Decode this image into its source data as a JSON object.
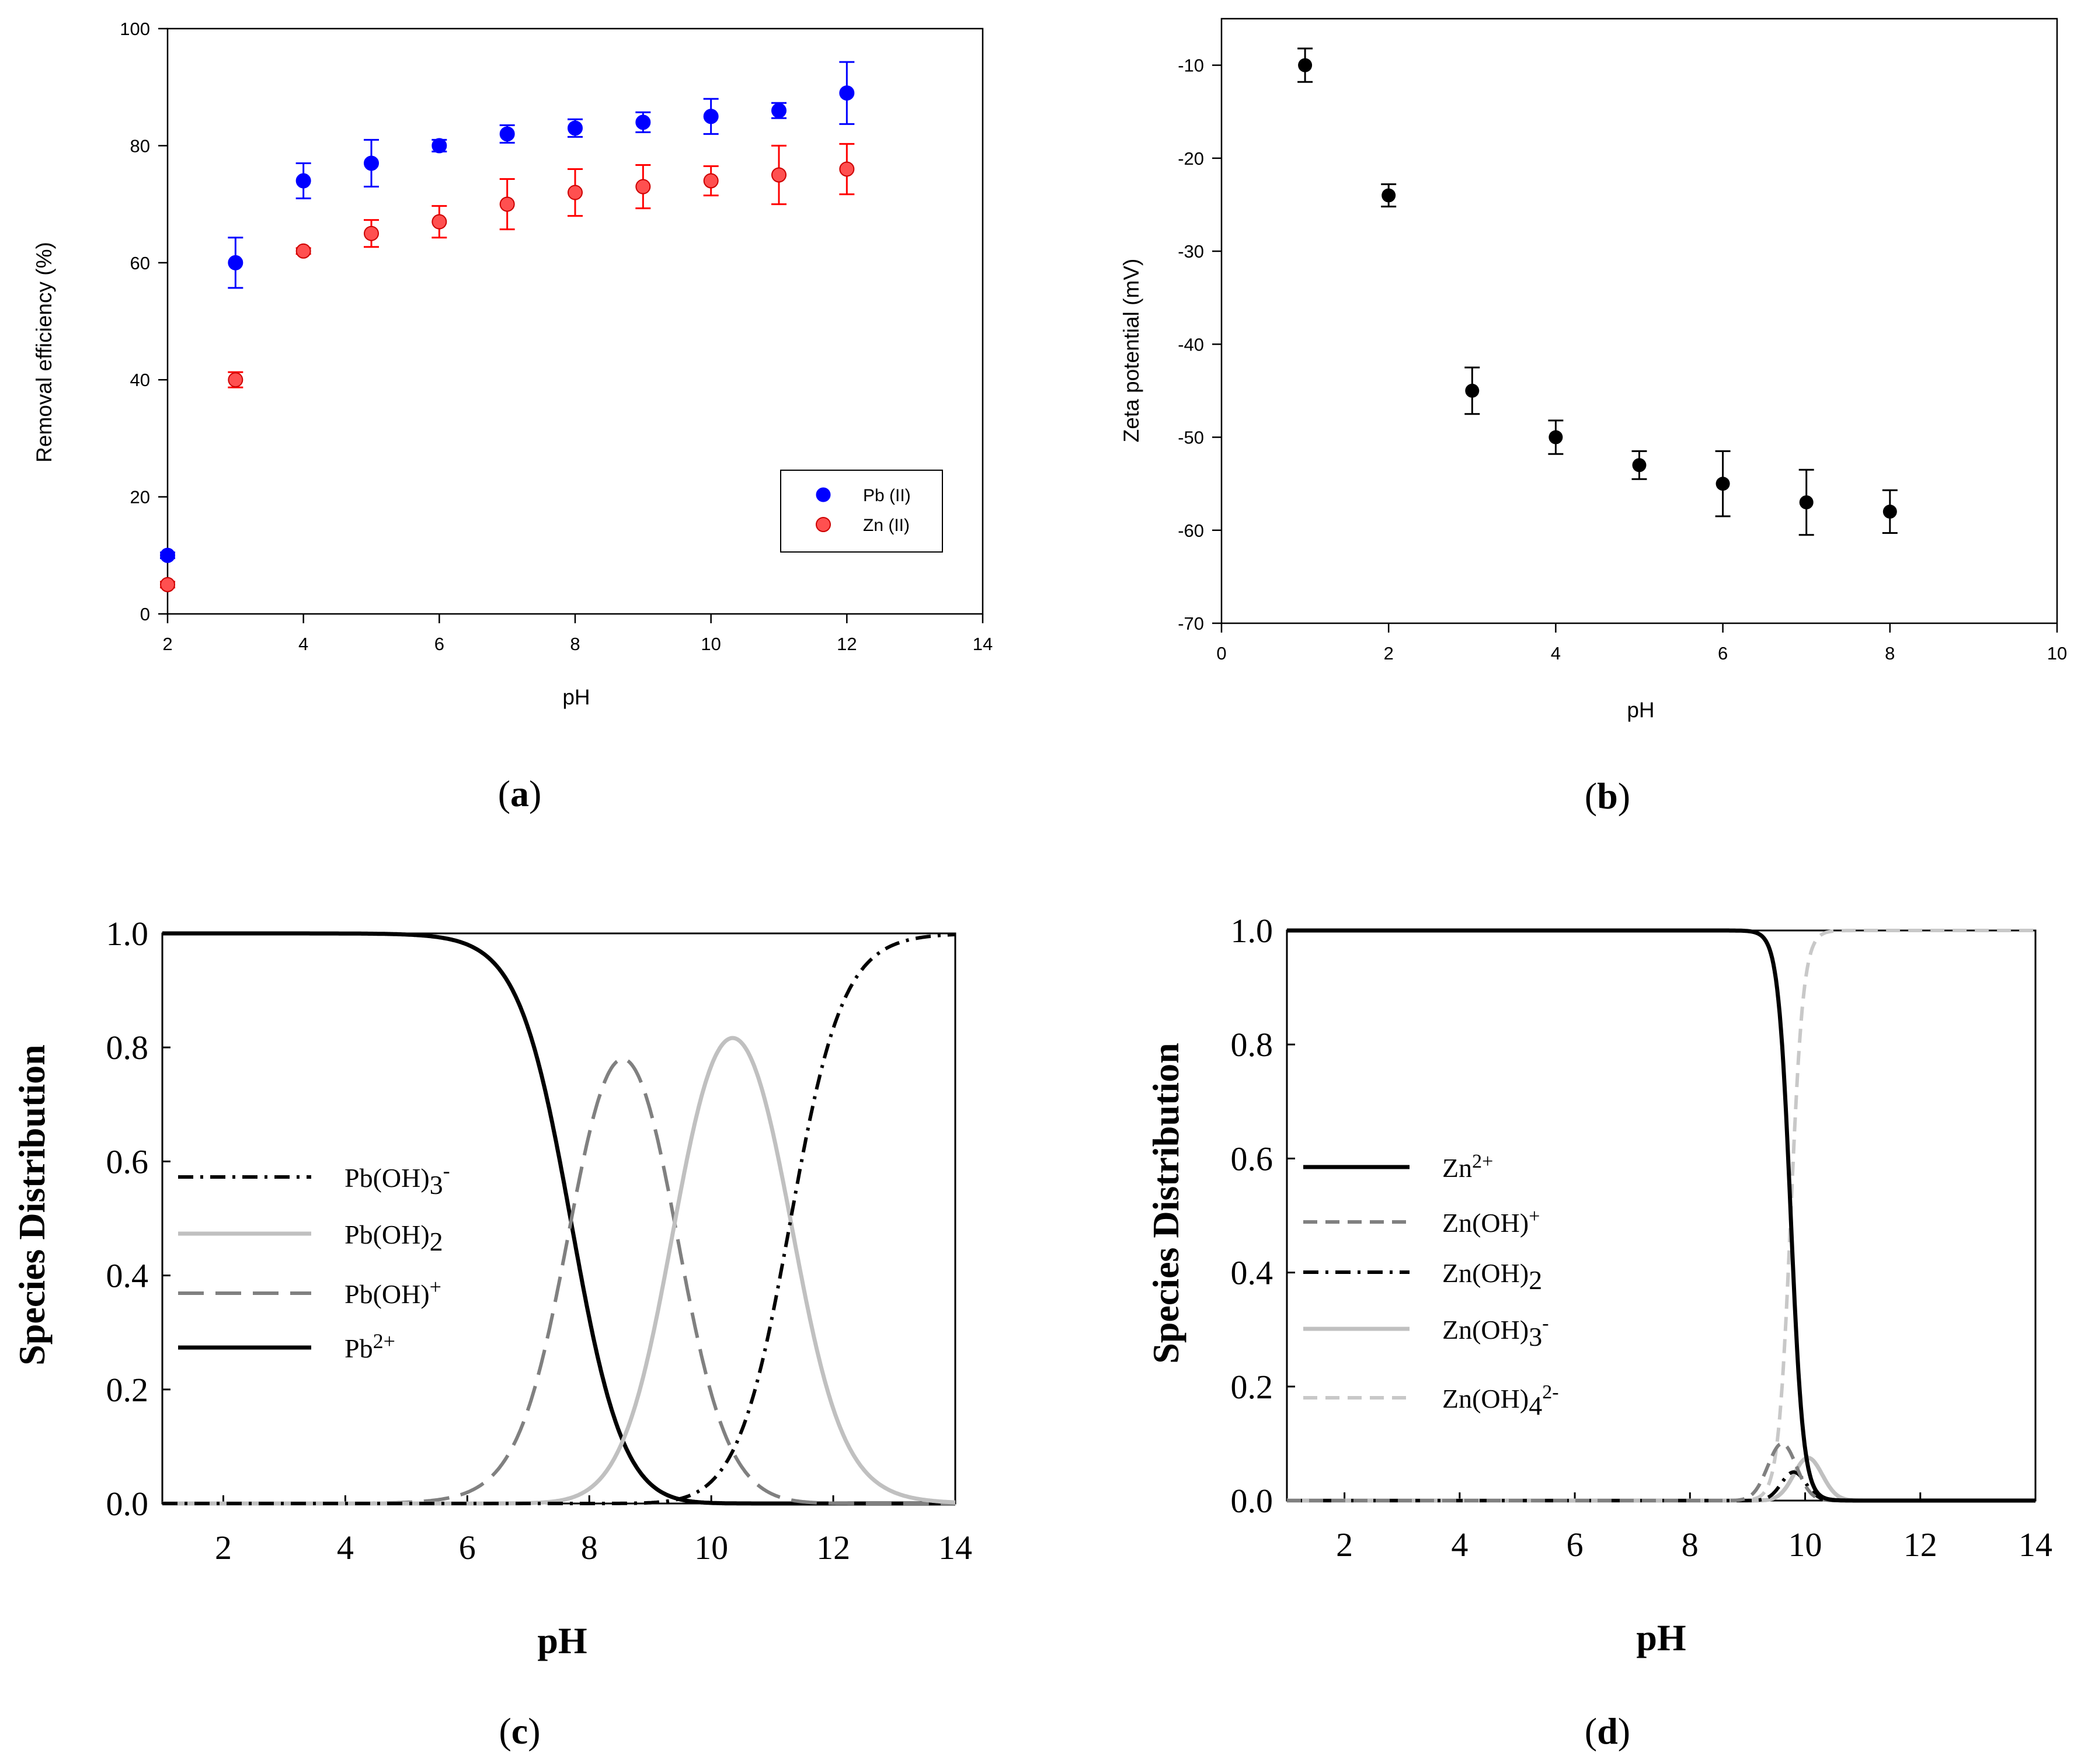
{
  "chart_data": [
    {
      "id": "a",
      "type": "scatter",
      "caption_letter": "a",
      "xlabel": "pH",
      "ylabel": "Removal efficiency (%)",
      "xlim": [
        2,
        14
      ],
      "ylim": [
        0,
        100
      ],
      "xticks": [
        2,
        4,
        6,
        8,
        10,
        12,
        14
      ],
      "yticks": [
        0,
        20,
        40,
        60,
        80,
        100
      ],
      "legend_position": "bottom-right",
      "series": [
        {
          "name": "Pb (II)",
          "color": "#0000ff",
          "x": [
            2,
            3,
            4,
            5,
            6,
            7,
            8,
            9,
            10,
            11,
            12
          ],
          "y": [
            10,
            60,
            74,
            77,
            80,
            82,
            83,
            84,
            85,
            86,
            89
          ],
          "err": [
            0.5,
            4.3,
            3.0,
            4.0,
            1.0,
            1.5,
            1.5,
            1.7,
            3.0,
            1.3,
            5.3
          ]
        },
        {
          "name": "Zn (II)",
          "color": "#ff0000",
          "x": [
            2,
            3,
            4,
            5,
            6,
            7,
            8,
            9,
            10,
            11,
            12
          ],
          "y": [
            5,
            40,
            62,
            65,
            67,
            70,
            72,
            73,
            74,
            75,
            76
          ],
          "err": [
            0.5,
            1.3,
            0.5,
            2.3,
            2.7,
            4.3,
            4.0,
            3.7,
            2.5,
            5.0,
            4.3
          ]
        }
      ]
    },
    {
      "id": "b",
      "type": "scatter",
      "caption_letter": "b",
      "xlabel": "pH",
      "ylabel": "Zeta potential (mV)",
      "xlim": [
        0,
        10
      ],
      "ylim": [
        -70,
        -5
      ],
      "xticks": [
        0,
        2,
        4,
        6,
        8,
        10
      ],
      "yticks": [
        -70,
        -60,
        -50,
        -40,
        -30,
        -20,
        -10
      ],
      "series": [
        {
          "name": "Zeta potential",
          "color": "#000000",
          "x": [
            1,
            2,
            3,
            4,
            5,
            6,
            7,
            8
          ],
          "y": [
            -10,
            -24,
            -45,
            -50,
            -53,
            -55,
            -57,
            -58
          ],
          "err": [
            1.8,
            1.2,
            2.5,
            1.8,
            1.5,
            3.5,
            3.5,
            2.3
          ]
        }
      ]
    },
    {
      "id": "c",
      "type": "line",
      "caption_letter": "c",
      "xlabel": "pH",
      "ylabel": "Species Distribution",
      "xlim": [
        1,
        14
      ],
      "ylim": [
        0,
        1
      ],
      "xticks": [
        2,
        4,
        6,
        8,
        10,
        12,
        14
      ],
      "yticks": [
        "0.0",
        "0.2",
        "0.4",
        "0.6",
        "0.8",
        "1.0"
      ],
      "legend_position": "middle-left",
      "species_pK": [
        7.7,
        9.4,
        11.3
      ],
      "series": [
        {
          "name": "Pb(OH)3-",
          "label_main": "Pb(OH)",
          "sub": "3",
          "sup": "-",
          "index": 3,
          "color": "#000000",
          "dash": "dashdot"
        },
        {
          "name": "Pb(OH)2",
          "label_main": "Pb(OH)",
          "sub": "2",
          "sup": "",
          "index": 2,
          "color": "#c0c0c0",
          "dash": "solid"
        },
        {
          "name": "Pb(OH)+",
          "label_main": "Pb(OH)",
          "sub": "",
          "sup": "+",
          "index": 1,
          "color": "#808080",
          "dash": "dash"
        },
        {
          "name": "Pb2+",
          "label_main": "Pb",
          "sub": "",
          "sup": "2+",
          "index": 0,
          "color": "#000000",
          "dash": "solid"
        }
      ]
    },
    {
      "id": "d",
      "type": "line",
      "caption_letter": "d",
      "xlabel": "pH",
      "ylabel": "Species Distribution",
      "xlim": [
        1,
        14
      ],
      "ylim": [
        0,
        1
      ],
      "xticks": [
        2,
        4,
        6,
        8,
        10,
        12,
        14
      ],
      "yticks": [
        "0.0",
        "0.2",
        "0.4",
        "0.6",
        "0.8",
        "1.0"
      ],
      "legend_position": "middle-left",
      "species_pK": [
        9.2,
        9.9,
        10.3,
        9.75
      ],
      "series": [
        {
          "name": "Zn2+",
          "label_main": "Zn",
          "sub": "",
          "sup": "2+",
          "index": 0,
          "color": "#000000",
          "dash": "solid"
        },
        {
          "name": "Zn(OH)+",
          "label_main": "Zn(OH)",
          "sub": "",
          "sup": "+",
          "index": 1,
          "color": "#808080",
          "dash": "shortdash"
        },
        {
          "name": "Zn(OH)2",
          "label_main": "Zn(OH)",
          "sub": "2",
          "sup": "",
          "index": 2,
          "color": "#000000",
          "dash": "dashdot"
        },
        {
          "name": "Zn(OH)3-",
          "label_main": "Zn(OH)",
          "sub": "3",
          "sup": "-",
          "index": 3,
          "color": "#c0c0c0",
          "dash": "solid"
        },
        {
          "name": "Zn(OH)42-",
          "label_main": "Zn(OH)",
          "sub": "4",
          "sup": "2-",
          "index": 4,
          "color": "#c8c8c8",
          "dash": "shortdash"
        }
      ]
    }
  ]
}
